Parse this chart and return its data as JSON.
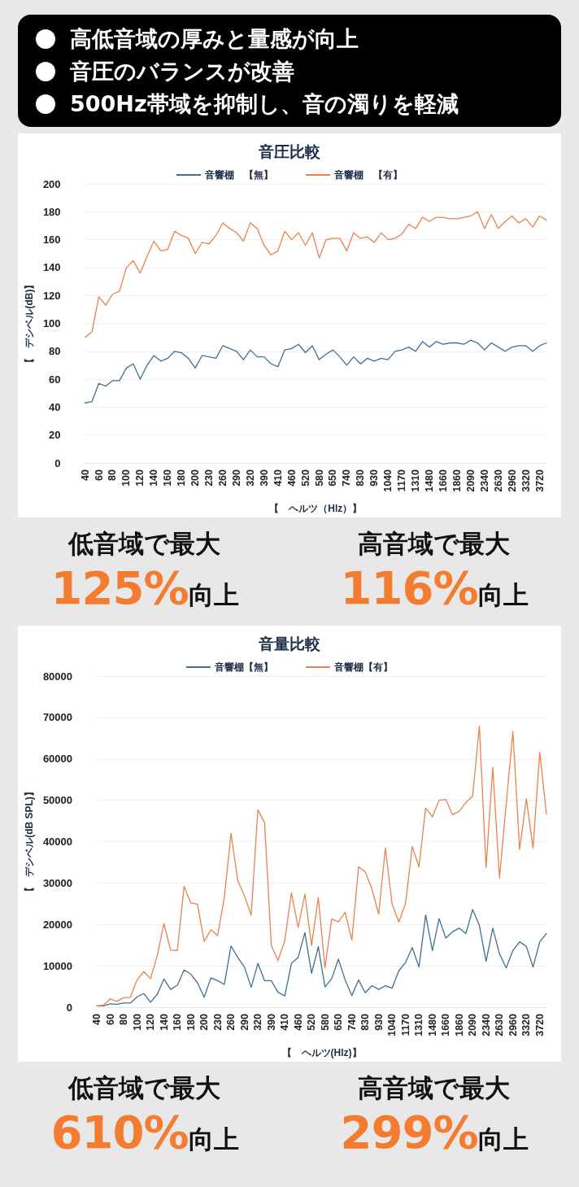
{
  "chart_data": [
    {
      "type": "line",
      "title": "音圧比較",
      "xlabel": "【　ヘルツ（Hlz）】",
      "ylabel": "【　デシベル(dB)】",
      "annotations": [
        "高低音域の厚みと量感が向上",
        "音圧のバランスが改善",
        "500Hz帯域を抑制し、音の濁りを軽減",
        "低音域で最大",
        "125%向上",
        "高音域で最大",
        "116%向上"
      ],
      "categories": [
        "40",
        null,
        "60",
        null,
        "80",
        null,
        "100",
        null,
        "120",
        null,
        "140",
        null,
        "160",
        null,
        "180",
        null,
        "200",
        null,
        "230",
        null,
        "260",
        null,
        "290",
        null,
        "320",
        null,
        "390",
        null,
        "410",
        null,
        "460",
        null,
        "520",
        null,
        "580",
        null,
        "650",
        null,
        "740",
        null,
        "830",
        null,
        "930",
        null,
        "1040",
        null,
        "1170",
        null,
        "1310",
        null,
        "1480",
        null,
        "1660",
        null,
        "1860",
        null,
        "2090",
        null,
        "2340",
        null,
        "2630",
        null,
        "2960",
        null,
        "3320",
        null,
        "3720",
        null
      ],
      "series": [
        {
          "name": "音響棚　【無】",
          "color": "#3f7091",
          "values": [
            43,
            44,
            57,
            55,
            59,
            59,
            68,
            71,
            60,
            70,
            77,
            73,
            75,
            80,
            79,
            75,
            68,
            77,
            76,
            75,
            84,
            82,
            80,
            74,
            81,
            76,
            76,
            71,
            69,
            81,
            82,
            85,
            79,
            84,
            74,
            78,
            81,
            76,
            70,
            76,
            71,
            75,
            73,
            75,
            74,
            80,
            81,
            83,
            80,
            87,
            83,
            87,
            85,
            86,
            86,
            85,
            88,
            86,
            81,
            86,
            83,
            80,
            83,
            84,
            84,
            80,
            84,
            86
          ]
        },
        {
          "name": "音響棚　【有】",
          "color": "#e8834f",
          "values": [
            90,
            94,
            119,
            113,
            121,
            123,
            140,
            145,
            136,
            148,
            159,
            152,
            153,
            166,
            163,
            161,
            150,
            158,
            157,
            163,
            172,
            168,
            165,
            159,
            172,
            168,
            156,
            149,
            152,
            166,
            160,
            165,
            156,
            165,
            147,
            160,
            161,
            161,
            152,
            165,
            161,
            162,
            158,
            165,
            160,
            161,
            164,
            171,
            168,
            176,
            173,
            176,
            176,
            175,
            175,
            176,
            177,
            180,
            168,
            178,
            168,
            173,
            177,
            172,
            175,
            169,
            177,
            174
          ]
        }
      ],
      "ylim": [
        0,
        200
      ],
      "yticks": [
        0,
        20,
        40,
        60,
        80,
        100,
        120,
        140,
        160,
        180,
        200
      ],
      "grid": "y",
      "legend": "top",
      "marker": "none",
      "line_style": "solid"
    },
    {
      "type": "line",
      "title": "音量比較",
      "xlabel": "【　ヘルツ(Hlz)】",
      "ylabel": "【　デシベル(dB SPL)】",
      "annotations": [
        "低音域で最大",
        "610%向上",
        "高音域で最大",
        "299%向上"
      ],
      "categories": [
        "40",
        null,
        "60",
        null,
        "80",
        null,
        "100",
        null,
        "120",
        null,
        "140",
        null,
        "160",
        null,
        "180",
        null,
        "200",
        null,
        "230",
        null,
        "260",
        null,
        "290",
        null,
        "320",
        null,
        "390",
        null,
        "410",
        null,
        "460",
        null,
        "520",
        null,
        "580",
        null,
        "650",
        null,
        "740",
        null,
        "830",
        null,
        "930",
        null,
        "1040",
        null,
        "1170",
        null,
        "1310",
        null,
        "1480",
        null,
        "1660",
        null,
        "1860",
        null,
        "2090",
        null,
        "2340",
        null,
        "2630",
        null,
        "2960",
        null,
        "3320",
        null,
        "3720",
        null
      ],
      "series": [
        {
          "name": "音響棚【無】",
          "color": "#3f7091",
          "values": [
            300,
            300,
            800,
            700,
            1000,
            1000,
            2500,
            3300,
            1200,
            3100,
            6800,
            4300,
            5300,
            9000,
            8000,
            5900,
            2400,
            7100,
            6400,
            5500,
            14800,
            12000,
            9700,
            4800,
            10600,
            6400,
            6400,
            3600,
            2700,
            10600,
            12000,
            18000,
            8200,
            14600,
            4900,
            6900,
            11600,
            6600,
            2800,
            6600,
            3500,
            5200,
            4300,
            5200,
            4600,
            8800,
            10800,
            14400,
            9700,
            22300,
            13700,
            21400,
            16700,
            18200,
            19100,
            17800,
            23600,
            19800,
            11100,
            19100,
            12900,
            9500,
            13700,
            15800,
            14700,
            9700,
            15800,
            17800
          ]
        },
        {
          "name": "音響棚【有】",
          "color": "#e8834f",
          "values": [
            300,
            500,
            2000,
            1400,
            2300,
            2400,
            6600,
            8600,
            6900,
            12400,
            20200,
            13800,
            13700,
            29200,
            25200,
            24900,
            15900,
            18700,
            17300,
            26500,
            42000,
            30600,
            26900,
            22200,
            47700,
            44600,
            14900,
            11300,
            16000,
            27600,
            19300,
            27300,
            14900,
            26500,
            9500,
            21300,
            20600,
            22900,
            16200,
            33900,
            32700,
            28500,
            22500,
            38400,
            24900,
            20600,
            25100,
            38800,
            33900,
            48100,
            46000,
            50000,
            50200,
            46500,
            47300,
            49500,
            51000,
            67900,
            33700,
            58000,
            31200,
            49100,
            66600,
            38100,
            50400,
            38400,
            61600,
            46600
          ]
        }
      ],
      "ylim": [
        0,
        80000
      ],
      "yticks": [
        0,
        10000,
        20000,
        30000,
        40000,
        50000,
        60000,
        70000,
        80000
      ],
      "grid": "y",
      "legend": "top",
      "marker": "none",
      "line_style": "solid"
    }
  ]
}
